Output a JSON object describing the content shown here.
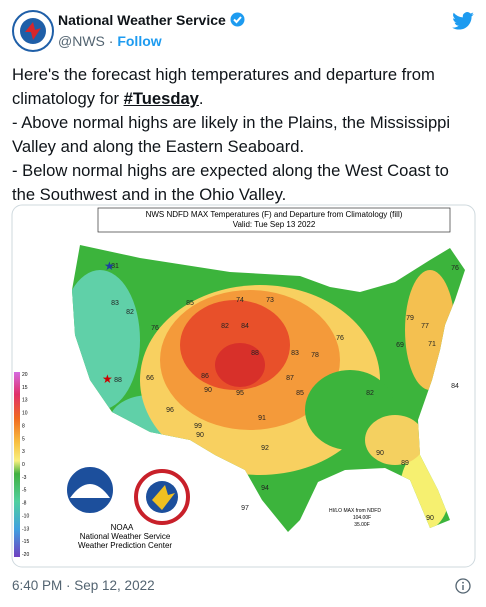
{
  "header": {
    "name": "National Weather Service",
    "handle": "@NWS",
    "separator": "·",
    "follow": "Follow"
  },
  "tweet": {
    "intro": "Here's the forecast high temperatures and departure from climatology for ",
    "hashtag": "#Tuesday",
    "intro_end": ".",
    "bullets": [
      "- Above normal highs are likely in the Plains, the Mississippi Valley and along the Eastern Seaboard.",
      "- Below normal highs are expected along the West Coast to the Southwest and in the Ohio Valley."
    ]
  },
  "map": {
    "title": "NWS NDFD MAX Temperatures (F) and Departure from Climatology (fill)",
    "subtitle": "Valid: Tue Sep 13 2022",
    "legend": [
      20,
      15,
      13,
      10,
      8,
      5,
      3,
      0,
      -3,
      -5,
      -8,
      -10,
      -13,
      -15,
      -20
    ],
    "temperatures": [
      81,
      83,
      82,
      76,
      85,
      82,
      84,
      74,
      73,
      88,
      86,
      90,
      95,
      91,
      90,
      92,
      85,
      83,
      78,
      76,
      82,
      87,
      90,
      89,
      88,
      66,
      96,
      99,
      94,
      97,
      90,
      71,
      69,
      79,
      77,
      76,
      84
    ],
    "agency": "NOAA",
    "credit_1": "National Weather Service",
    "credit_2": "Weather Prediction Center",
    "hilo_title": "HI/LO MAX from NDFD",
    "hi": "104.00F",
    "lo": "35.00F"
  },
  "footer": {
    "time": "6:40 PM · Sep 12, 2022"
  }
}
